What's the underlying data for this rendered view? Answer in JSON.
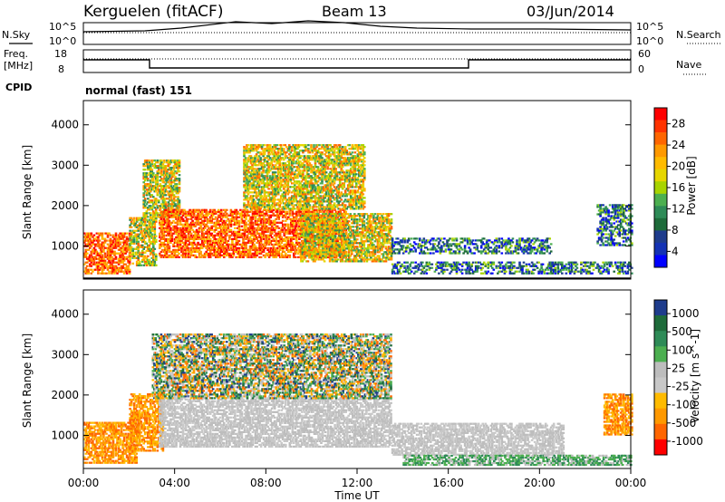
{
  "header": {
    "station": "Kerguelen (fitACF)",
    "beam": "Beam 13",
    "date": "03/Jun/2014"
  },
  "summary_panels": {
    "nsky_label": "N.Sky",
    "nsky_ticks": [
      "10^5",
      "10^0"
    ],
    "nsearch_label": "N.Search",
    "nsearch_ticks": [
      "10^5",
      "10^0"
    ],
    "freq_label": "Freq.",
    "freq_unit": "[MHz]",
    "freq_ticks": [
      "18",
      "8"
    ],
    "nave_label": "Nave",
    "nave_ticks": [
      "60",
      "0"
    ],
    "cpid_label": "CPID",
    "cpid_value": "normal (fast) 151"
  },
  "chart_data": [
    {
      "type": "heatmap",
      "title": "",
      "ylabel": "Slant Range [km]",
      "xlabel": "",
      "ylim": [
        180,
        4600
      ],
      "yticks": [
        "1000",
        "2000",
        "3000",
        "4000"
      ],
      "colorbar": {
        "label": "Power [dB]",
        "ticks": [
          "28",
          "24",
          "20",
          "16",
          "12",
          "8",
          "4"
        ],
        "colors": [
          "#ff0000",
          "#ff3300",
          "#ff6600",
          "#ff9900",
          "#ffbb00",
          "#e6d600",
          "#a8d400",
          "#4caf50",
          "#2e8b57",
          "#1e6b3a",
          "#1e3c8c",
          "#1432b4",
          "#0000ff"
        ]
      },
      "regions": [
        {
          "t0": 0.0,
          "t1": 2.0,
          "r0": 300,
          "r1": 1300,
          "level": "high"
        },
        {
          "t0": 2.0,
          "t1": 3.2,
          "r0": 500,
          "r1": 1700,
          "level": "mid"
        },
        {
          "t0": 2.6,
          "t1": 4.2,
          "r0": 1700,
          "r1": 3100,
          "level": "mid"
        },
        {
          "t0": 3.3,
          "t1": 11.5,
          "r0": 700,
          "r1": 1900,
          "level": "high"
        },
        {
          "t0": 7.0,
          "t1": 12.3,
          "r0": 1900,
          "r1": 3500,
          "level": "mid"
        },
        {
          "t0": 9.5,
          "t1": 13.5,
          "r0": 600,
          "r1": 1800,
          "level": "mid"
        },
        {
          "t0": 13.5,
          "t1": 20.5,
          "r0": 800,
          "r1": 1200,
          "level": "low"
        },
        {
          "t0": 13.5,
          "t1": 24.0,
          "r0": 300,
          "r1": 600,
          "level": "low"
        },
        {
          "t0": 22.5,
          "t1": 24.0,
          "r0": 1000,
          "r1": 2000,
          "level": "low"
        }
      ]
    },
    {
      "type": "heatmap",
      "title": "",
      "ylabel": "Slant Range [km]",
      "xlabel": "Time UT",
      "ylim": [
        180,
        4600
      ],
      "yticks": [
        "1000",
        "2000",
        "3000",
        "4000"
      ],
      "xticks": [
        "00:00",
        "04:00",
        "08:00",
        "12:00",
        "16:00",
        "20:00",
        "00:00"
      ],
      "xlim_hours": [
        0,
        24
      ],
      "colorbar": {
        "label": "Velocity [m s^-1]",
        "ticks": [
          "1000",
          "500",
          "100",
          "25",
          "-25",
          "-100",
          "-500",
          "-1000"
        ],
        "colors": [
          "#1e3c8c",
          "#1e6b3a",
          "#2e8b57",
          "#4caf50",
          "#bdbdbd",
          "#c8c8c8",
          "#ffbb00",
          "#ff9900",
          "#ff6600",
          "#ff0000"
        ]
      },
      "regions": [
        {
          "t0": 0.0,
          "t1": 2.3,
          "r0": 300,
          "r1": 1300,
          "level": "neg"
        },
        {
          "t0": 2.0,
          "t1": 3.5,
          "r0": 600,
          "r1": 2000,
          "level": "neg"
        },
        {
          "t0": 3.3,
          "t1": 13.5,
          "r0": 700,
          "r1": 1900,
          "level": "zero"
        },
        {
          "t0": 3.0,
          "t1": 13.5,
          "r0": 1900,
          "r1": 3500,
          "level": "mixed"
        },
        {
          "t0": 13.5,
          "t1": 21.0,
          "r0": 500,
          "r1": 1300,
          "level": "zero"
        },
        {
          "t0": 14.0,
          "t1": 24.0,
          "r0": 250,
          "r1": 500,
          "level": "pos"
        },
        {
          "t0": 22.8,
          "t1": 24.0,
          "r0": 1000,
          "r1": 2000,
          "level": "neg"
        }
      ]
    }
  ]
}
